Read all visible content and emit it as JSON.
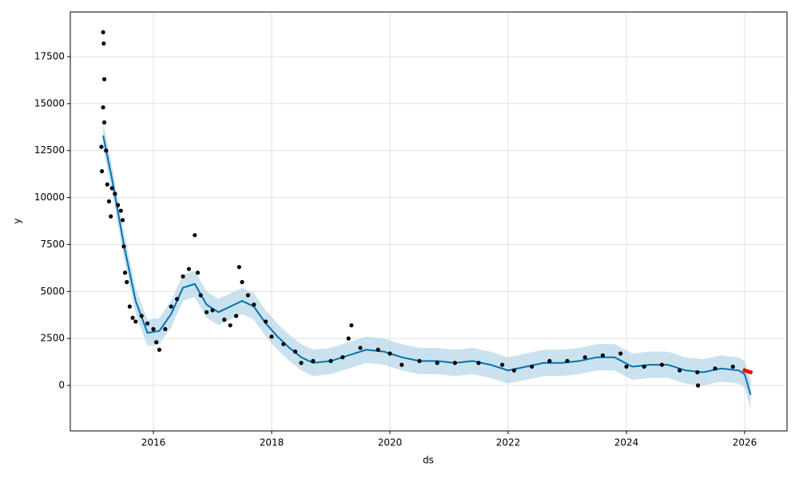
{
  "chart_data": {
    "type": "line",
    "x_label": "ds",
    "y_label": "y",
    "xlim": [
      2014.595,
      2026.716
    ],
    "xticks": [
      2016,
      2018,
      2020,
      2022,
      2024,
      2026
    ],
    "ylim": [
      -2421,
      19879
    ],
    "yticks": [
      0,
      2500,
      5000,
      7500,
      10000,
      12500,
      15000,
      17500
    ],
    "grid": true,
    "series": [
      {
        "type": "band",
        "color": "#a6cee3",
        "x": [
          2015.15,
          2015.3,
          2015.5,
          2015.7,
          2015.9,
          2016.1,
          2016.3,
          2016.5,
          2016.7,
          2016.9,
          2017.1,
          2017.3,
          2017.5,
          2017.7,
          2017.9,
          2018.1,
          2018.3,
          2018.5,
          2018.7,
          2019.0,
          2019.3,
          2019.6,
          2019.9,
          2020.2,
          2020.5,
          2020.8,
          2021.1,
          2021.4,
          2021.7,
          2022.0,
          2022.3,
          2022.6,
          2022.9,
          2023.2,
          2023.5,
          2023.8,
          2024.1,
          2024.4,
          2024.7,
          2025.0,
          2025.3,
          2025.6,
          2025.9,
          2026.0,
          2026.1
        ],
        "lower": [
          12600,
          10300,
          6800,
          3800,
          2100,
          2200,
          3100,
          4500,
          4700,
          3600,
          3200,
          3500,
          3800,
          3500,
          2600,
          1900,
          1300,
          800,
          500,
          600,
          900,
          1200,
          1100,
          800,
          600,
          600,
          500,
          600,
          400,
          100,
          300,
          500,
          500,
          600,
          800,
          800,
          300,
          400,
          400,
          100,
          0,
          200,
          100,
          -100,
          -1300
        ],
        "upper": [
          14000,
          11700,
          8200,
          5200,
          3500,
          3600,
          4500,
          5900,
          6100,
          5000,
          4600,
          4900,
          5200,
          4900,
          4000,
          3300,
          2700,
          2200,
          1900,
          2000,
          2300,
          2600,
          2500,
          2200,
          2000,
          2000,
          1900,
          2000,
          1800,
          1500,
          1700,
          1900,
          1900,
          2000,
          2200,
          2200,
          1700,
          1800,
          1800,
          1500,
          1400,
          1600,
          1500,
          1300,
          300
        ]
      },
      {
        "type": "line",
        "color": "#0072b2",
        "x": [
          2015.15,
          2015.3,
          2015.5,
          2015.7,
          2015.9,
          2016.1,
          2016.3,
          2016.5,
          2016.7,
          2016.9,
          2017.1,
          2017.3,
          2017.5,
          2017.7,
          2017.9,
          2018.1,
          2018.3,
          2018.5,
          2018.7,
          2019.0,
          2019.3,
          2019.6,
          2019.9,
          2020.2,
          2020.5,
          2020.8,
          2021.1,
          2021.4,
          2021.7,
          2022.0,
          2022.3,
          2022.6,
          2022.9,
          2023.2,
          2023.5,
          2023.8,
          2024.1,
          2024.4,
          2024.7,
          2025.0,
          2025.3,
          2025.6,
          2025.9,
          2026.0,
          2026.1
        ],
        "values": [
          13300,
          11000,
          7500,
          4500,
          2800,
          2900,
          3800,
          5200,
          5400,
          4300,
          3900,
          4200,
          4500,
          4200,
          3300,
          2600,
          2000,
          1500,
          1200,
          1300,
          1600,
          1900,
          1800,
          1500,
          1300,
          1300,
          1200,
          1300,
          1100,
          800,
          1000,
          1200,
          1200,
          1300,
          1500,
          1500,
          1000,
          1100,
          1100,
          800,
          700,
          900,
          800,
          600,
          -500
        ]
      },
      {
        "type": "scatter",
        "color": "#000000",
        "x": [
          2015.15,
          2015.16,
          2015.17,
          2015.15,
          2015.17,
          2015.12,
          2015.13,
          2015.2,
          2015.22,
          2015.25,
          2015.28,
          2015.3,
          2015.35,
          2015.4,
          2015.45,
          2015.48,
          2015.5,
          2015.52,
          2015.55,
          2015.6,
          2015.65,
          2015.7,
          2015.8,
          2015.9,
          2016.0,
          2016.05,
          2016.1,
          2016.2,
          2016.3,
          2016.4,
          2016.5,
          2016.6,
          2016.7,
          2016.75,
          2016.8,
          2016.9,
          2017.0,
          2017.2,
          2017.3,
          2017.4,
          2017.45,
          2017.5,
          2017.6,
          2017.7,
          2017.9,
          2018.0,
          2018.2,
          2018.4,
          2018.5,
          2018.7,
          2019.0,
          2019.2,
          2019.3,
          2019.35,
          2019.5,
          2019.8,
          2020.0,
          2020.2,
          2020.5,
          2020.8,
          2021.1,
          2021.5,
          2021.9,
          2022.1,
          2022.4,
          2022.7,
          2023.0,
          2023.3,
          2023.6,
          2023.9,
          2024.0,
          2024.3,
          2024.6,
          2024.9,
          2025.2,
          2025.21,
          2025.5,
          2025.8,
          2026.0
        ],
        "values": [
          18800,
          18200,
          16300,
          14800,
          14000,
          12700,
          11400,
          12500,
          10700,
          9800,
          9000,
          10500,
          10200,
          9600,
          9300,
          8800,
          7400,
          6000,
          5500,
          4200,
          3600,
          3400,
          3700,
          3300,
          3000,
          2300,
          1900,
          3000,
          4200,
          4600,
          5800,
          6200,
          8000,
          6000,
          4800,
          3900,
          4000,
          3500,
          3200,
          3700,
          6300,
          5500,
          4800,
          4300,
          3400,
          2600,
          2200,
          1800,
          1200,
          1300,
          1300,
          1500,
          2500,
          3200,
          2000,
          1900,
          1700,
          1100,
          1300,
          1200,
          1200,
          1200,
          1100,
          800,
          1000,
          1300,
          1300,
          1500,
          1600,
          1700,
          1000,
          1000,
          1100,
          800,
          700,
          0,
          900,
          1000,
          800
        ]
      },
      {
        "type": "scatter",
        "color": "#ff0000",
        "x": [
          2026.0,
          2026.05,
          2026.1
        ],
        "values": [
          800,
          750,
          700
        ]
      }
    ]
  }
}
